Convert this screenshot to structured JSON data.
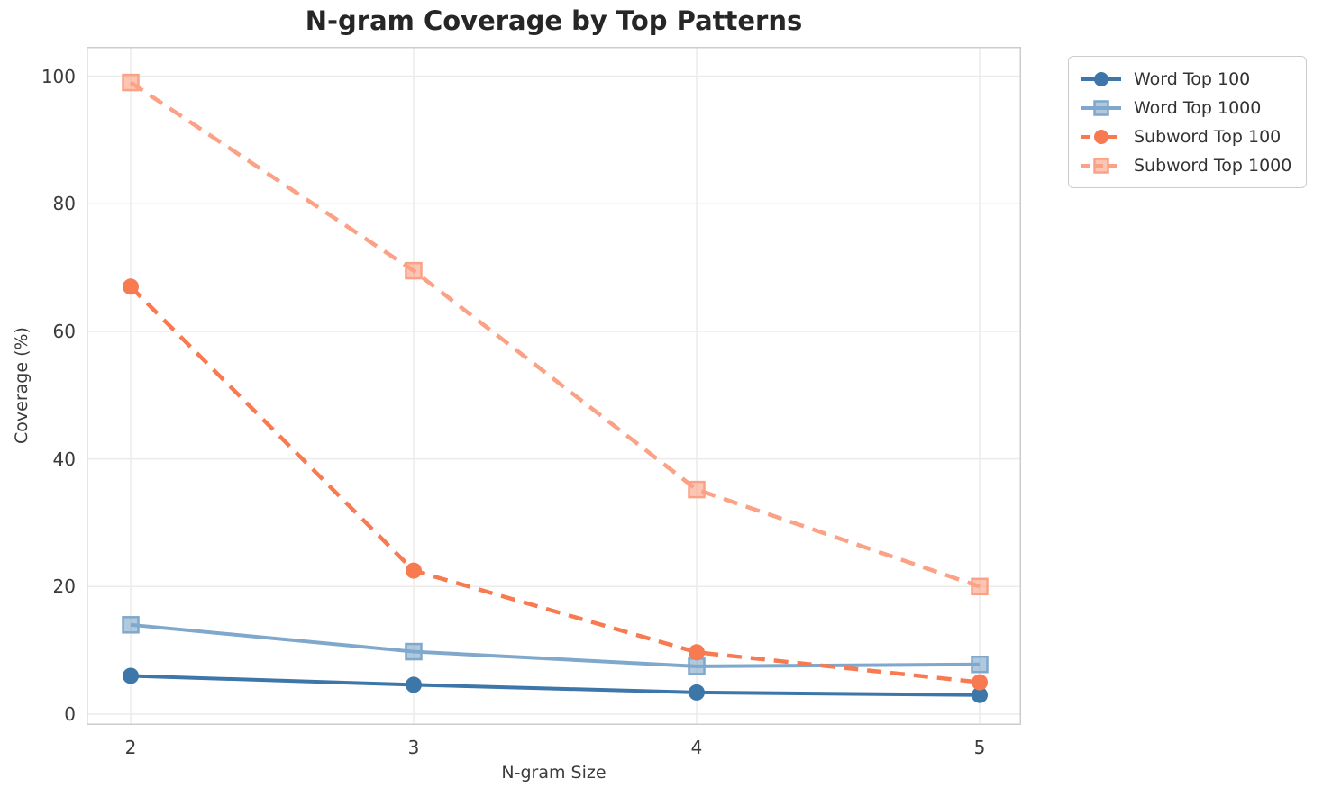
{
  "title": "N-gram Coverage by Top Patterns",
  "chart_data": {
    "type": "line",
    "x": [
      2,
      3,
      4,
      5
    ],
    "xlabel": "N-gram Size",
    "ylabel": "Coverage (%)",
    "xticks": [
      "2",
      "3",
      "4",
      "5"
    ],
    "yticks": [
      "0",
      "20",
      "40",
      "60",
      "80",
      "100"
    ],
    "ytick_values": [
      0,
      20,
      40,
      60,
      80,
      100
    ],
    "ylim": [
      -1.7,
      104.6
    ],
    "xlim": [
      1.84,
      5.15
    ],
    "grid": true,
    "legend_position": "outside-upper-right",
    "series": [
      {
        "name": "Word Top 100",
        "values": [
          6.0,
          4.6,
          3.4,
          3.0
        ],
        "color": "#3d76a8",
        "line_style": "solid",
        "marker": "circle"
      },
      {
        "name": "Word Top 1000",
        "values": [
          14.0,
          9.8,
          7.5,
          7.8
        ],
        "color": "#7fa8cc",
        "line_style": "solid",
        "marker": "square"
      },
      {
        "name": "Subword Top 100",
        "values": [
          67.0,
          22.5,
          9.7,
          5.0
        ],
        "color": "#f87a50",
        "line_style": "dashed",
        "marker": "circle"
      },
      {
        "name": "Subword Top 1000",
        "values": [
          99.0,
          69.5,
          35.2,
          20.0
        ],
        "color": "#fba185",
        "line_style": "dashed",
        "marker": "square"
      }
    ]
  },
  "colors": {
    "background": "#ffffff",
    "gridline": "#ebebeb",
    "spine": "#cccccc",
    "title_text": "#262626",
    "tick_text": "#3b3b3b",
    "legend_border": "#cccccc"
  }
}
